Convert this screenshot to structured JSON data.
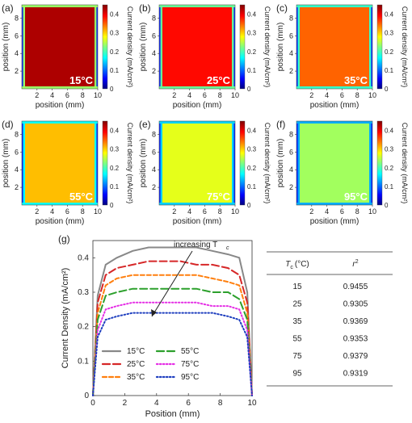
{
  "panels": [
    {
      "letter": "(a)",
      "temp": "15°C",
      "density": 0.43
    },
    {
      "letter": "(b)",
      "temp": "25°C",
      "density": 0.39
    },
    {
      "letter": "(c)",
      "temp": "35°C",
      "density": 0.35
    },
    {
      "letter": "(d)",
      "temp": "55°C",
      "density": 0.31
    },
    {
      "letter": "(e)",
      "temp": "75°C",
      "density": 0.27
    },
    {
      "letter": "(f)",
      "temp": "95°C",
      "density": 0.24
    }
  ],
  "map_axes": {
    "xlabel": "position (mm)",
    "ylabel": "position (mm)",
    "x_ticks": [
      "2",
      "4",
      "6",
      "8",
      "10"
    ],
    "y_ticks": [
      "2",
      "4",
      "6",
      "8"
    ],
    "colorbar_label": "Current density (mA/cm²)",
    "colorbar_ticks": [
      "0",
      "0.1",
      "0.2",
      "0.3",
      "0.4"
    ]
  },
  "profile_panel": {
    "letter": "(g)",
    "annotation": "increasing T",
    "annotation_sub": "c"
  },
  "chart_data": {
    "type": "line",
    "xlabel": "Position (mm)",
    "ylabel": "Current Density (mA/cm²)",
    "xlim": [
      0,
      10
    ],
    "ylim": [
      0,
      0.45
    ],
    "x_ticks": [
      "0",
      "2",
      "4",
      "6",
      "8",
      "10"
    ],
    "y_ticks": [
      "0",
      "0.1",
      "0.2",
      "0.3",
      "0.4"
    ],
    "x": [
      0.3,
      0.8,
      1.5,
      2.5,
      3.5,
      4.5,
      5.5,
      6.5,
      7.5,
      8.5,
      9.2,
      9.7
    ],
    "series": [
      {
        "name": "15°C",
        "color": "#888888",
        "dash": "solid",
        "values": [
          0.29,
          0.38,
          0.4,
          0.42,
          0.43,
          0.43,
          0.43,
          0.43,
          0.42,
          0.41,
          0.4,
          0.3
        ]
      },
      {
        "name": "25°C",
        "color": "#d62728",
        "dash": "long",
        "values": [
          0.27,
          0.35,
          0.37,
          0.38,
          0.39,
          0.39,
          0.39,
          0.38,
          0.38,
          0.37,
          0.35,
          0.27
        ]
      },
      {
        "name": "35°C",
        "color": "#ff7f0e",
        "dash": "short",
        "values": [
          0.24,
          0.32,
          0.34,
          0.35,
          0.35,
          0.35,
          0.35,
          0.35,
          0.34,
          0.33,
          0.32,
          0.24
        ]
      },
      {
        "name": "55°C",
        "color": "#2ca02c",
        "dash": "long",
        "values": [
          0.22,
          0.29,
          0.3,
          0.31,
          0.31,
          0.31,
          0.31,
          0.31,
          0.3,
          0.3,
          0.28,
          0.22
        ]
      },
      {
        "name": "75°C",
        "color": "#e52fe5",
        "dash": "dot",
        "values": [
          0.19,
          0.25,
          0.26,
          0.27,
          0.27,
          0.27,
          0.27,
          0.27,
          0.26,
          0.26,
          0.25,
          0.19
        ]
      },
      {
        "name": "95°C",
        "color": "#1f3fbf",
        "dash": "dot",
        "values": [
          0.17,
          0.22,
          0.23,
          0.24,
          0.24,
          0.24,
          0.24,
          0.24,
          0.24,
          0.23,
          0.22,
          0.17
        ]
      }
    ]
  },
  "table": {
    "header": [
      "T",
      "c",
      "(°C)",
      "r",
      "2"
    ],
    "rows": [
      [
        "15",
        "0.9455"
      ],
      [
        "25",
        "0.9305"
      ],
      [
        "35",
        "0.9369"
      ],
      [
        "55",
        "0.9353"
      ],
      [
        "75",
        "0.9379"
      ],
      [
        "95",
        "0.9319"
      ]
    ]
  }
}
